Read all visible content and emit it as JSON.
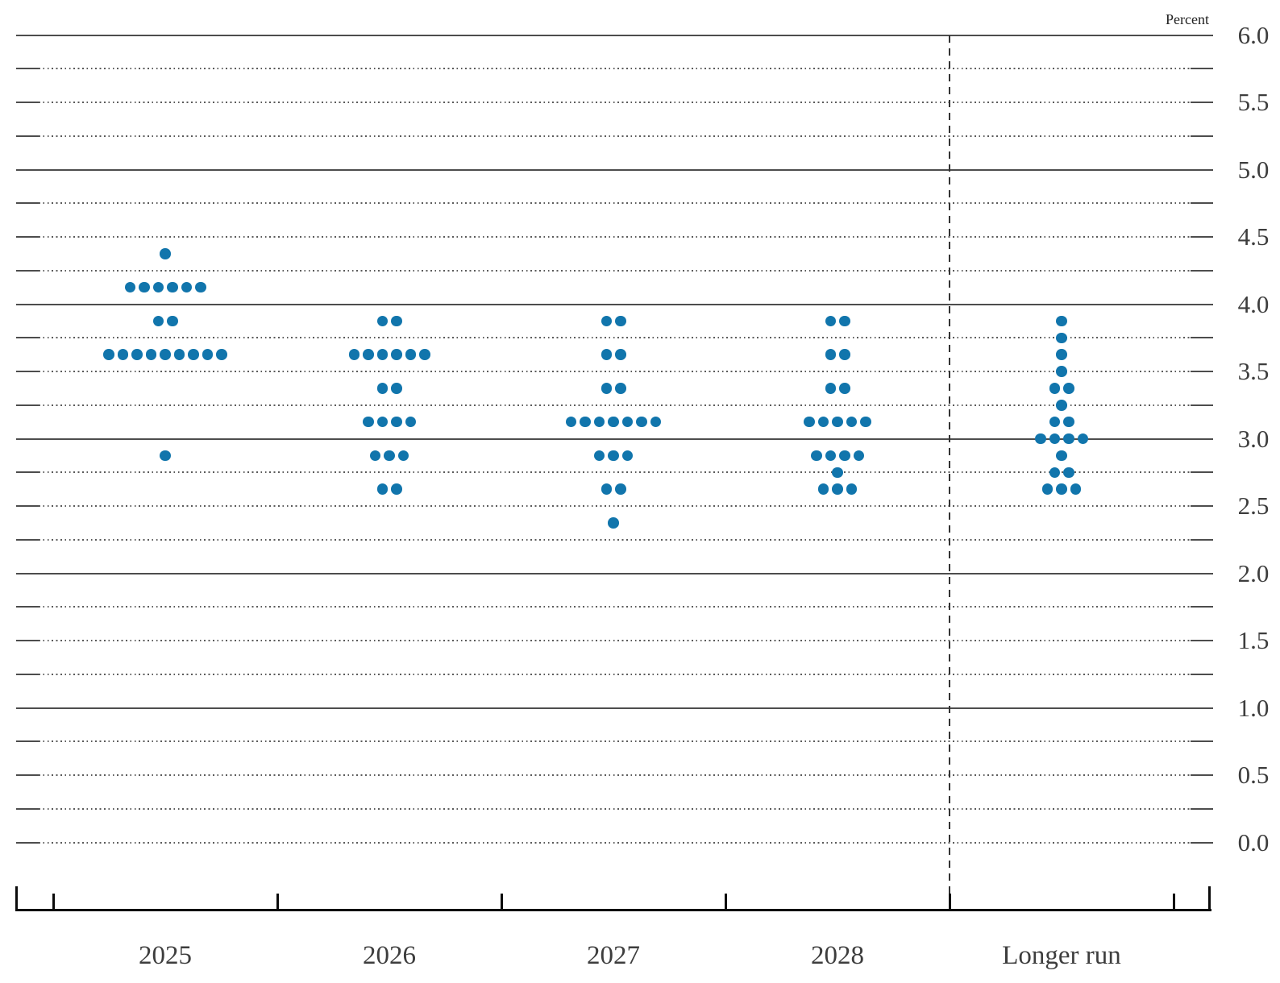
{
  "chart_data": {
    "type": "scatter",
    "variant": "fomc-dot-plot",
    "unit_label": "Percent",
    "categories": [
      "2025",
      "2026",
      "2027",
      "2028",
      "Longer run"
    ],
    "separator": {
      "between": [
        "2028",
        "Longer run"
      ],
      "style": "dashed"
    },
    "ylim": [
      0.0,
      6.0
    ],
    "y_grid_step": 0.25,
    "y_label_step": 0.5,
    "y_tick_labels": [
      "6.0",
      "5.5",
      "5.0",
      "4.5",
      "4.0",
      "3.5",
      "3.0",
      "2.5",
      "2.0",
      "1.5",
      "1.0",
      "0.5",
      "0.0"
    ],
    "grid": true,
    "legend": "none",
    "colors": {
      "dot": "#1175ac",
      "grid_solid": "#4d4d4d",
      "grid_dotted": "#5a5a5a",
      "axis": "#0b0b0b",
      "text": "#3d3d3d"
    },
    "series": [
      {
        "category": "2025",
        "dots": [
          {
            "value": 4.375,
            "count": 1
          },
          {
            "value": 4.125,
            "count": 6
          },
          {
            "value": 3.875,
            "count": 2
          },
          {
            "value": 3.625,
            "count": 9
          },
          {
            "value": 2.875,
            "count": 1
          }
        ]
      },
      {
        "category": "2026",
        "dots": [
          {
            "value": 3.875,
            "count": 2
          },
          {
            "value": 3.625,
            "count": 6
          },
          {
            "value": 3.375,
            "count": 2
          },
          {
            "value": 3.125,
            "count": 4
          },
          {
            "value": 2.875,
            "count": 3
          },
          {
            "value": 2.625,
            "count": 2
          }
        ]
      },
      {
        "category": "2027",
        "dots": [
          {
            "value": 3.875,
            "count": 2
          },
          {
            "value": 3.625,
            "count": 2
          },
          {
            "value": 3.375,
            "count": 2
          },
          {
            "value": 3.125,
            "count": 7
          },
          {
            "value": 2.875,
            "count": 3
          },
          {
            "value": 2.625,
            "count": 2
          },
          {
            "value": 2.375,
            "count": 1
          }
        ]
      },
      {
        "category": "2028",
        "dots": [
          {
            "value": 3.875,
            "count": 2
          },
          {
            "value": 3.625,
            "count": 2
          },
          {
            "value": 3.375,
            "count": 2
          },
          {
            "value": 3.125,
            "count": 5
          },
          {
            "value": 2.875,
            "count": 4
          },
          {
            "value": 2.75,
            "count": 1
          },
          {
            "value": 2.625,
            "count": 3
          }
        ]
      },
      {
        "category": "Longer run",
        "dots": [
          {
            "value": 3.875,
            "count": 1
          },
          {
            "value": 3.75,
            "count": 1
          },
          {
            "value": 3.625,
            "count": 1
          },
          {
            "value": 3.5,
            "count": 1
          },
          {
            "value": 3.375,
            "count": 2
          },
          {
            "value": 3.25,
            "count": 1
          },
          {
            "value": 3.125,
            "count": 2
          },
          {
            "value": 3.0,
            "count": 4
          },
          {
            "value": 2.875,
            "count": 1
          },
          {
            "value": 2.75,
            "count": 2
          },
          {
            "value": 2.625,
            "count": 3
          }
        ]
      }
    ]
  }
}
